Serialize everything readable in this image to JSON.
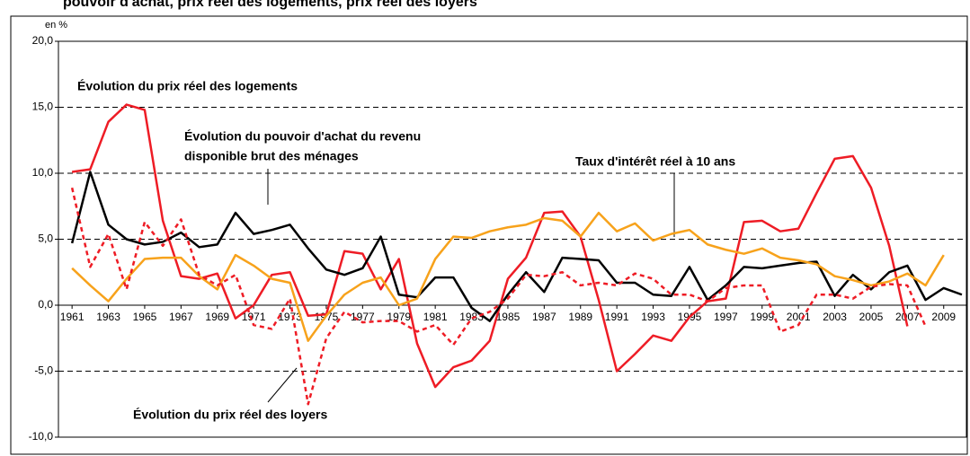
{
  "chart_data": {
    "type": "line",
    "title": "pouvoir d'achat, prix réel des logements, prix réel des loyers",
    "y_unit": "en %",
    "annotations": [
      "Évolution du prix réel des logements",
      "Évolution du pouvoir d'achat du revenu",
      "disponible brut des ménages",
      "Taux d'intérêt réel à 10 ans",
      "Évolution du prix réel des loyers"
    ],
    "xlim": [
      1960.25,
      2010.25
    ],
    "xticks": [
      1961,
      1963,
      1965,
      1967,
      1969,
      1971,
      1973,
      1975,
      1977,
      1979,
      1981,
      1983,
      1985,
      1987,
      1989,
      1991,
      1993,
      1995,
      1997,
      1999,
      2001,
      2003,
      2005,
      2007,
      2009
    ],
    "ylim": [
      -10,
      20
    ],
    "yticks": [
      {
        "value": -10,
        "label": "-10,0"
      },
      {
        "value": -5,
        "label": "-5,0"
      },
      {
        "value": 0,
        "label": "0,0"
      },
      {
        "value": 5,
        "label": "5,0"
      },
      {
        "value": 10,
        "label": "10,0"
      },
      {
        "value": 15,
        "label": "15,0"
      },
      {
        "value": 20,
        "label": "20,0"
      }
    ],
    "grid": true,
    "series": [
      {
        "name": "Évolution du prix réel des logements",
        "color": "#ee1c25",
        "dash": false,
        "x0": 1961,
        "values": [
          10.1,
          10.3,
          13.9,
          15.2,
          14.8,
          6.4,
          2.2,
          2.0,
          2.4,
          -1.0,
          0.0,
          2.3,
          2.5,
          -0.8,
          -0.7,
          4.1,
          3.9,
          1.2,
          3.5,
          -2.9,
          -6.2,
          -4.7,
          -4.2,
          -2.7,
          2.0,
          3.6,
          7.0,
          7.1,
          5.2,
          0.4,
          -5.0,
          -3.7,
          -2.3,
          -2.7,
          -0.9,
          0.3,
          0.5,
          6.3,
          6.4,
          5.6,
          5.8,
          8.5,
          11.1,
          11.3,
          8.9,
          4.5,
          -1.6
        ]
      },
      {
        "name": "Évolution du pouvoir d'achat du revenu disponible brut des ménages",
        "color": "#000000",
        "dash": false,
        "x0": 1961,
        "values": [
          4.7,
          10.1,
          6.1,
          5.0,
          4.6,
          4.8,
          5.5,
          4.4,
          4.6,
          7.0,
          5.4,
          5.7,
          6.1,
          4.3,
          2.7,
          2.3,
          2.8,
          5.2,
          0.8,
          0.6,
          2.1,
          2.1,
          -0.2,
          -1.2,
          0.8,
          2.5,
          1.0,
          3.6,
          3.5,
          3.4,
          1.7,
          1.7,
          0.8,
          0.7,
          2.9,
          0.4,
          1.5,
          2.9,
          2.8,
          3.0,
          3.2,
          3.3,
          0.7,
          2.3,
          1.2,
          2.5,
          3.0,
          0.4,
          1.3,
          0.8
        ]
      },
      {
        "name": "Taux d'intérêt réel à 10 ans",
        "color": "#f7a21b",
        "dash": false,
        "x0": 1961,
        "values": [
          2.8,
          1.5,
          0.3,
          2.0,
          3.5,
          3.6,
          3.6,
          2.2,
          1.2,
          3.8,
          3.0,
          2.0,
          1.7,
          -2.7,
          -0.8,
          0.8,
          1.7,
          2.1,
          0.0,
          0.5,
          3.5,
          5.2,
          5.1,
          5.6,
          5.9,
          6.1,
          6.6,
          6.4,
          5.2,
          7.0,
          5.6,
          6.2,
          4.9,
          5.4,
          5.7,
          4.6,
          4.2,
          3.9,
          4.3,
          3.6,
          3.4,
          3.1,
          2.2,
          1.9,
          1.5,
          1.8,
          2.4,
          1.5,
          3.8
        ]
      },
      {
        "name": "Évolution du prix réel des loyers",
        "color": "#ee1c25",
        "dash": true,
        "x0": 1961,
        "values": [
          8.9,
          2.9,
          5.4,
          1.2,
          6.3,
          4.5,
          6.5,
          2.3,
          1.5,
          2.3,
          -1.5,
          -1.8,
          0.5,
          -7.5,
          -2.5,
          -0.5,
          -1.3,
          -1.2,
          -1.2,
          -2.0,
          -1.5,
          -3.0,
          -1.0,
          -0.5,
          0.5,
          2.3,
          2.2,
          2.5,
          1.5,
          1.7,
          1.5,
          2.4,
          2.0,
          0.8,
          0.8,
          0.3,
          1.3,
          1.5,
          1.5,
          -2.0,
          -1.5,
          0.8,
          0.8,
          0.5,
          1.4,
          1.6,
          1.5,
          -1.6
        ]
      }
    ]
  }
}
